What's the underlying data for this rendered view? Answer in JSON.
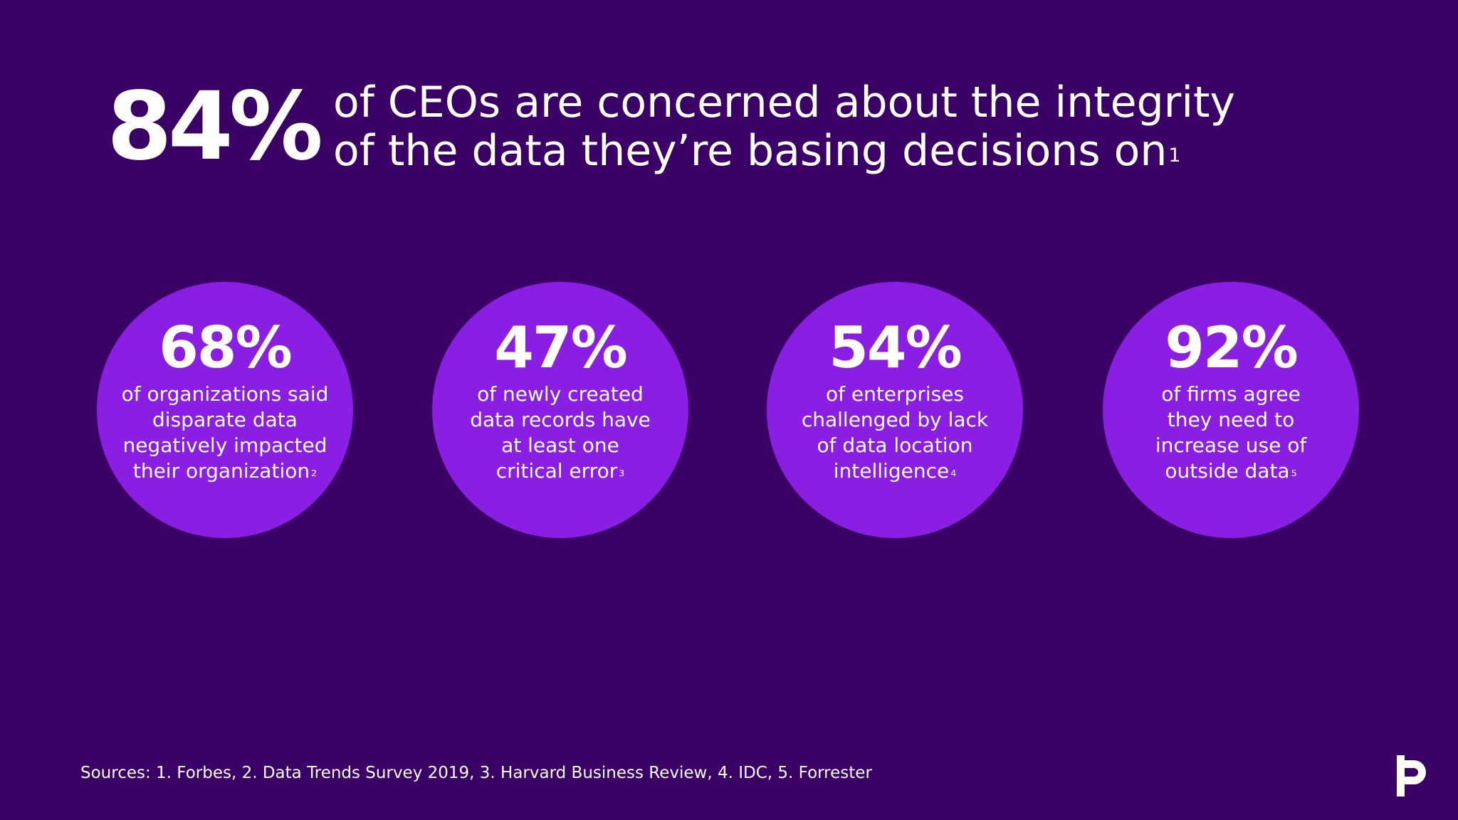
{
  "headline": {
    "stat": "84%",
    "line1": "of CEOs are concerned about the integrity",
    "line2": "of the data they’re basing decisions on",
    "footnote": "1"
  },
  "stats": [
    {
      "value": "68%",
      "lines": [
        "of organizations said",
        "disparate data",
        "negatively impacted",
        "their organization"
      ],
      "footnote": "2"
    },
    {
      "value": "47%",
      "lines": [
        "of newly created",
        "data records have",
        "at least one",
        "critical error"
      ],
      "footnote": "3"
    },
    {
      "value": "54%",
      "lines": [
        "of enterprises",
        "challenged by lack",
        "of data location",
        "intelligence"
      ],
      "footnote": "4"
    },
    {
      "value": "92%",
      "lines": [
        "of firms agree",
        "they need to",
        "increase use of",
        "outside data"
      ],
      "footnote": "5"
    }
  ],
  "sources": "Sources: 1. Forbes, 2. Data Trends Survey 2019, 3. Harvard Business Review, 4. IDC, 5. Forrester",
  "logo": {
    "icon": "p-logo-icon"
  },
  "colors": {
    "background": "#3a0066",
    "circle": "#8a1ee3",
    "text": "#ffffff"
  }
}
